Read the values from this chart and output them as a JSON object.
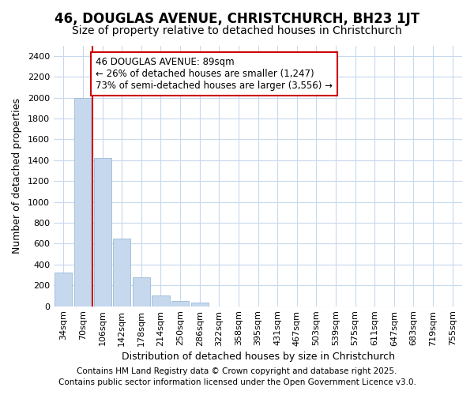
{
  "title1": "46, DOUGLAS AVENUE, CHRISTCHURCH, BH23 1JT",
  "title2": "Size of property relative to detached houses in Christchurch",
  "xlabel": "Distribution of detached houses by size in Christchurch",
  "ylabel": "Number of detached properties",
  "bar_labels": [
    "34sqm",
    "70sqm",
    "106sqm",
    "142sqm",
    "178sqm",
    "214sqm",
    "250sqm",
    "286sqm",
    "322sqm",
    "358sqm",
    "395sqm",
    "431sqm",
    "467sqm",
    "503sqm",
    "539sqm",
    "575sqm",
    "611sqm",
    "647sqm",
    "683sqm",
    "719sqm",
    "755sqm"
  ],
  "bar_values": [
    320,
    2000,
    1420,
    650,
    280,
    100,
    50,
    35,
    0,
    0,
    0,
    0,
    0,
    0,
    0,
    0,
    0,
    0,
    0,
    0,
    0
  ],
  "bar_color": "#c5d8ee",
  "bar_edge_color": "#9bbbd8",
  "red_line_x": 1.5,
  "annotation_text": "46 DOUGLAS AVENUE: 89sqm\n← 26% of detached houses are smaller (1,247)\n73% of semi-detached houses are larger (3,556) →",
  "annotation_box_color": "#ffffff",
  "annotation_border_color": "#cc0000",
  "ylim": [
    0,
    2500
  ],
  "yticks": [
    0,
    200,
    400,
    600,
    800,
    1000,
    1200,
    1400,
    1600,
    1800,
    2000,
    2200,
    2400
  ],
  "footer1": "Contains HM Land Registry data © Crown copyright and database right 2025.",
  "footer2": "Contains public sector information licensed under the Open Government Licence v3.0.",
  "bg_color": "#ffffff",
  "plot_bg_color": "#ffffff",
  "grid_color": "#c8d8ee",
  "title1_fontsize": 12,
  "title2_fontsize": 10,
  "xlabel_fontsize": 9,
  "ylabel_fontsize": 9,
  "tick_fontsize": 8,
  "footer_fontsize": 7.5,
  "annotation_fontsize": 8.5
}
